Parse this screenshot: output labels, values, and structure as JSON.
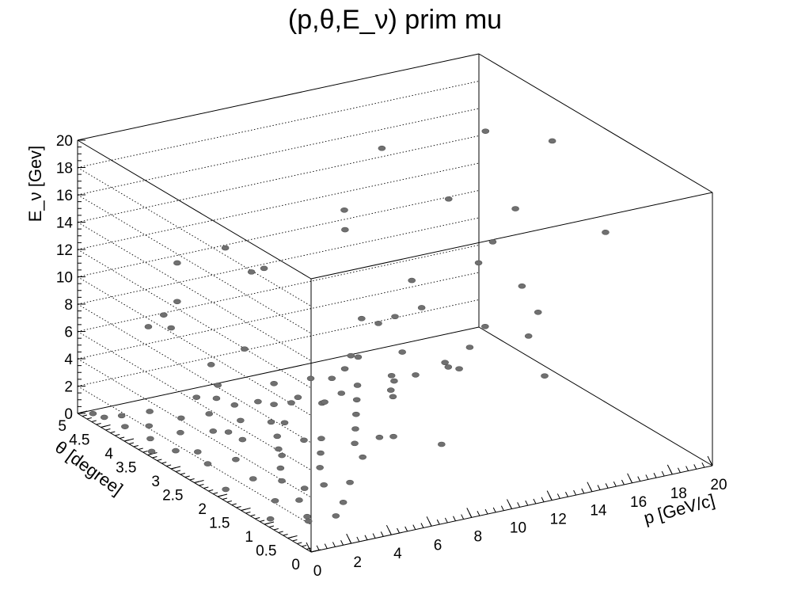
{
  "chart_data": {
    "type": "scatter",
    "title": "(p,θ,E_ν) prim mu",
    "xlabel": "p [GeV/c]",
    "ylabel": "θ [degree]",
    "zlabel": "E_ν [Gev]",
    "xlim": [
      0,
      20
    ],
    "ylim": [
      0,
      5
    ],
    "zlim": [
      0,
      20
    ],
    "x_ticks": [
      "0",
      "2",
      "4",
      "6",
      "8",
      "10",
      "12",
      "14",
      "16",
      "18",
      "20"
    ],
    "y_ticks": [
      "0",
      "0.5",
      "1",
      "1.5",
      "2",
      "2.5",
      "3",
      "3.5",
      "4",
      "4.5",
      "5"
    ],
    "z_ticks": [
      "0",
      "2",
      "4",
      "6",
      "8",
      "10",
      "12",
      "14",
      "16",
      "18",
      "20"
    ],
    "grid": true,
    "marker_color": "#707070",
    "points": [
      [
        0.8,
        0.4,
        1.2
      ],
      [
        1.2,
        0.6,
        1.0
      ],
      [
        1.5,
        0.9,
        1.5
      ],
      [
        2.0,
        1.0,
        2.0
      ],
      [
        1.0,
        1.2,
        1.0
      ],
      [
        2.5,
        0.8,
        2.5
      ],
      [
        3.0,
        1.1,
        3.0
      ],
      [
        1.8,
        1.4,
        1.8
      ],
      [
        2.2,
        1.6,
        2.2
      ],
      [
        3.5,
        1.3,
        3.5
      ],
      [
        4.0,
        1.5,
        4.0
      ],
      [
        1.3,
        1.8,
        1.3
      ],
      [
        2.8,
        1.9,
        2.8
      ],
      [
        3.2,
        2.1,
        3.2
      ],
      [
        4.5,
        1.0,
        4.5
      ],
      [
        5.0,
        1.2,
        5.0
      ],
      [
        1.6,
        2.3,
        1.6
      ],
      [
        2.4,
        2.5,
        2.4
      ],
      [
        3.8,
        2.2,
        3.8
      ],
      [
        0.9,
        2.6,
        0.9
      ],
      [
        1.1,
        2.9,
        1.1
      ],
      [
        2.1,
        3.0,
        2.1
      ],
      [
        0.7,
        3.2,
        0.7
      ],
      [
        1.4,
        3.4,
        1.4
      ],
      [
        0.6,
        3.7,
        0.6
      ],
      [
        1.0,
        3.9,
        1.0
      ],
      [
        0.5,
        4.2,
        0.5
      ],
      [
        0.8,
        4.4,
        0.8
      ],
      [
        0.4,
        4.6,
        0.4
      ],
      [
        5.5,
        1.4,
        5.5
      ],
      [
        6.0,
        1.6,
        6.0
      ],
      [
        6.5,
        1.8,
        6.5
      ],
      [
        7.0,
        1.3,
        7.0
      ],
      [
        5.2,
        2.0,
        5.2
      ],
      [
        4.2,
        2.6,
        4.2
      ],
      [
        3.0,
        2.8,
        3.0
      ],
      [
        2.6,
        3.3,
        2.6
      ],
      [
        1.9,
        3.6,
        1.9
      ],
      [
        3.4,
        3.1,
        3.4
      ],
      [
        4.6,
        2.4,
        4.6
      ],
      [
        7.5,
        1.5,
        7.5
      ],
      [
        8.0,
        1.2,
        8.0
      ],
      [
        6.8,
        2.2,
        6.8
      ],
      [
        5.8,
        2.5,
        5.8
      ],
      [
        4.9,
        2.9,
        4.9
      ],
      [
        9.0,
        1.0,
        9.0
      ],
      [
        10.0,
        0.9,
        10.0
      ],
      [
        8.5,
        1.7,
        8.5
      ],
      [
        2.3,
        0.3,
        2.3
      ],
      [
        3.1,
        0.5,
        3.1
      ],
      [
        4.2,
        0.7,
        4.2
      ],
      [
        1.7,
        0.2,
        1.7
      ],
      [
        5.5,
        0.6,
        5.5
      ],
      [
        3.6,
        1.7,
        3.6
      ],
      [
        1.5,
        4.1,
        1.5
      ],
      [
        2.9,
        3.7,
        2.9
      ],
      [
        0.3,
        4.8,
        0.3
      ],
      [
        0.2,
        3.5,
        0.2
      ],
      [
        0.4,
        2.0,
        0.4
      ],
      [
        0.3,
        1.0,
        0.3
      ],
      [
        1.0,
        2.2,
        4.0
      ],
      [
        1.5,
        1.5,
        6.0
      ],
      [
        2.0,
        3.0,
        7.0
      ],
      [
        1.2,
        4.0,
        8.0
      ],
      [
        2.5,
        2.5,
        9.0
      ],
      [
        0.8,
        3.5,
        10.0
      ],
      [
        3.0,
        1.0,
        8.0
      ],
      [
        2.2,
        0.5,
        11.0
      ],
      [
        1.8,
        2.8,
        5.0
      ],
      [
        4.0,
        2.0,
        6.0
      ],
      [
        3.5,
        3.5,
        4.0
      ],
      [
        5.0,
        1.5,
        7.0
      ],
      [
        6.0,
        0.8,
        9.0
      ],
      [
        7.0,
        2.0,
        8.0
      ],
      [
        8.0,
        0.5,
        10.0
      ],
      [
        9.0,
        1.5,
        12.0
      ],
      [
        10.0,
        2.5,
        9.0
      ],
      [
        11.0,
        1.0,
        11.0
      ],
      [
        12.0,
        3.0,
        10.0
      ],
      [
        13.0,
        2.0,
        13.0
      ],
      [
        14.0,
        1.5,
        12.0
      ],
      [
        15.0,
        3.5,
        14.0
      ],
      [
        16.0,
        2.5,
        15.0
      ],
      [
        18.0,
        4.0,
        17.0
      ],
      [
        19.0,
        3.0,
        18.0
      ],
      [
        17.0,
        1.0,
        16.0
      ],
      [
        12.0,
        0.5,
        11.0
      ],
      [
        11.0,
        4.0,
        12.0
      ],
      [
        9.5,
        3.0,
        8.0
      ],
      [
        7.5,
        4.5,
        9.0
      ],
      [
        6.5,
        3.8,
        11.0
      ],
      [
        5.5,
        4.2,
        12.0
      ],
      [
        4.5,
        4.8,
        10.0
      ],
      [
        3.8,
        4.5,
        8.0
      ],
      [
        2.8,
        4.2,
        7.0
      ],
      [
        14.0,
        4.5,
        16.0
      ],
      [
        10.5,
        3.8,
        14.0
      ],
      [
        8.5,
        2.8,
        6.0
      ],
      [
        13.5,
        0.8,
        7.0
      ],
      [
        15.5,
        1.8,
        9.0
      ],
      [
        16.5,
        3.2,
        11.0
      ],
      [
        12.5,
        2.2,
        5.0
      ],
      [
        11.5,
        3.5,
        6.0
      ],
      [
        6.2,
        1.2,
        4.0
      ],
      [
        7.2,
        0.3,
        5.0
      ],
      [
        9.2,
        2.2,
        4.0
      ],
      [
        4.8,
        3.2,
        3.0
      ],
      [
        3.2,
        2.0,
        2.0
      ]
    ]
  }
}
